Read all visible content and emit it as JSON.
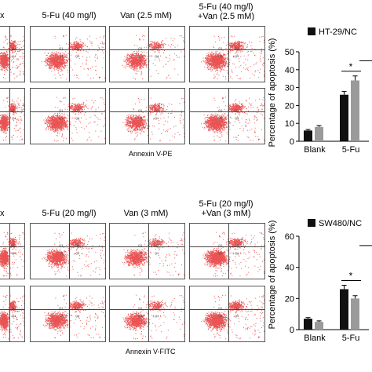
{
  "top": {
    "headers": [
      "x",
      "5-Fu (40 mg/l)",
      "Van (2.5 mM)",
      "5-Fu (40 mg/l)",
      "+Van (2.5 mM)"
    ],
    "axis_label": "Annexin V-PE",
    "quadrant_labels": [
      "Q1",
      "Q2",
      "Q3",
      "Q4"
    ]
  },
  "bottom": {
    "headers": [
      "x",
      "5-Fu (20 mg/l)",
      "Van (3 mM)",
      "5-Fu (20 mg/l)",
      "+Van (3 mM)"
    ],
    "axis_label": "Annexin V-FITC",
    "quadrant_labels": [
      "Q1",
      "Q2",
      "Q3",
      "Q4"
    ]
  },
  "chart_data": [
    {
      "type": "bar",
      "ylabel": "Percentage of apoptosis (%)",
      "ylim": [
        0,
        50
      ],
      "yticks": [
        0,
        10,
        20,
        30,
        40,
        50
      ],
      "categories": [
        "Blank",
        "5-Fu"
      ],
      "legend": [
        "HT-29/NC"
      ],
      "series": [
        {
          "name": "HT-29/NC",
          "color": "#111111",
          "values": [
            6,
            26
          ],
          "errors": [
            0.6,
            1.8
          ]
        },
        {
          "color": "#9a9a9a",
          "values": [
            8,
            34
          ],
          "errors": [
            0.8,
            2.5
          ]
        }
      ],
      "significance": "*"
    },
    {
      "type": "bar",
      "ylabel": "Percentage of apoptosis (%)",
      "ylim": [
        0,
        60
      ],
      "yticks": [
        0,
        20,
        40,
        60
      ],
      "categories": [
        "Blank",
        "5-Fu"
      ],
      "legend": [
        "SW480/NC"
      ],
      "series": [
        {
          "name": "SW480/NC",
          "color": "#111111",
          "values": [
            7,
            26
          ],
          "errors": [
            0.7,
            2.5
          ]
        },
        {
          "color": "#9a9a9a",
          "values": [
            5,
            20
          ],
          "errors": [
            0.6,
            1.8
          ]
        }
      ],
      "significance": "*"
    }
  ]
}
